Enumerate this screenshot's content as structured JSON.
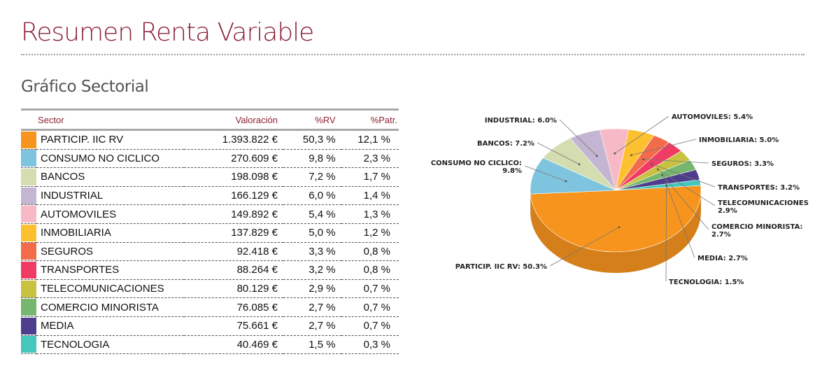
{
  "page_title": "Resumen Renta Variable",
  "section_title": "Gráfico Sectorial",
  "table": {
    "headers": [
      "Sector",
      "Valoración",
      "%RV",
      "%Patr."
    ],
    "rows": [
      {
        "sector": "PARTICIP. IIC RV",
        "valoracion": "1.393.822 €",
        "rv": "50,3 %",
        "patr": "12,1 %",
        "color": "#f7941d"
      },
      {
        "sector": "CONSUMO NO CICLICO",
        "valoracion": "270.609 €",
        "rv": "9,8 %",
        "patr": "2,3 %",
        "color": "#7fc4df"
      },
      {
        "sector": "BANCOS",
        "valoracion": "198.098 €",
        "rv": "7,2 %",
        "patr": "1,7 %",
        "color": "#d3ddb0"
      },
      {
        "sector": "INDUSTRIAL",
        "valoracion": "166.129 €",
        "rv": "6,0 %",
        "patr": "1,4 %",
        "color": "#c4b6d2"
      },
      {
        "sector": "AUTOMOVILES",
        "valoracion": "149.892 €",
        "rv": "5,4 %",
        "patr": "1,3 %",
        "color": "#f8b9c6"
      },
      {
        "sector": "INMOBILIARIA",
        "valoracion": "137.829 €",
        "rv": "5,0 %",
        "patr": "1,2 %",
        "color": "#fdc02f"
      },
      {
        "sector": "SEGUROS",
        "valoracion": "92.418 €",
        "rv": "3,3 %",
        "patr": "0,8 %",
        "color": "#f26b4a"
      },
      {
        "sector": "TRANSPORTES",
        "valoracion": "88.264 €",
        "rv": "3,2 %",
        "patr": "0,8 %",
        "color": "#f03c64"
      },
      {
        "sector": "TELECOMUNICACIONES",
        "valoracion": "80.129 €",
        "rv": "2,9 %",
        "patr": "0,7 %",
        "color": "#c8c240"
      },
      {
        "sector": "COMERCIO MINORISTA",
        "valoracion": "76.085 €",
        "rv": "2,7 %",
        "patr": "0,7 %",
        "color": "#76b66e"
      },
      {
        "sector": "MEDIA",
        "valoracion": "75.661 €",
        "rv": "2,7 %",
        "patr": "0,7 %",
        "color": "#4e3d8c"
      },
      {
        "sector": "TECNOLOGIA",
        "valoracion": "40.469 €",
        "rv": "1,5 %",
        "patr": "0,3 %",
        "color": "#45c7bd"
      }
    ]
  },
  "chart_data": {
    "type": "pie",
    "title": "",
    "categories": [
      "PARTICIP. IIC RV",
      "CONSUMO NO CICLICO",
      "BANCOS",
      "INDUSTRIAL",
      "AUTOMOVILES",
      "INMOBILIARIA",
      "SEGUROS",
      "TRANSPORTES",
      "TELECOMUNICACIONES",
      "COMERCIO MINORISTA",
      "MEDIA",
      "TECNOLOGIA"
    ],
    "values": [
      50.3,
      9.8,
      7.2,
      6.0,
      5.4,
      5.0,
      3.3,
      3.2,
      2.9,
      2.7,
      2.7,
      1.5
    ],
    "colors": [
      "#f7941d",
      "#7fc4df",
      "#d3ddb0",
      "#c4b6d2",
      "#f8b9c6",
      "#fdc02f",
      "#f26b4a",
      "#f03c64",
      "#c8c240",
      "#76b66e",
      "#4e3d8c",
      "#45c7bd"
    ],
    "labels": [
      "PARTICIP. IIC RV: 50.3%",
      "CONSUMO NO CICLICO:|9.8%",
      "BANCOS: 7.2%",
      "INDUSTRIAL: 6.0%",
      "AUTOMOVILES: 5.4%",
      "INMOBILIARIA: 5.0%",
      "SEGUROS: 3.3%",
      "TRANSPORTES: 3.2%",
      "TELECOMUNICACIONES|2.9%",
      "COMERCIO MINORISTA:|2.7%",
      "MEDIA: 2.7%",
      "TECNOLOGIA: 1.5%"
    ]
  }
}
